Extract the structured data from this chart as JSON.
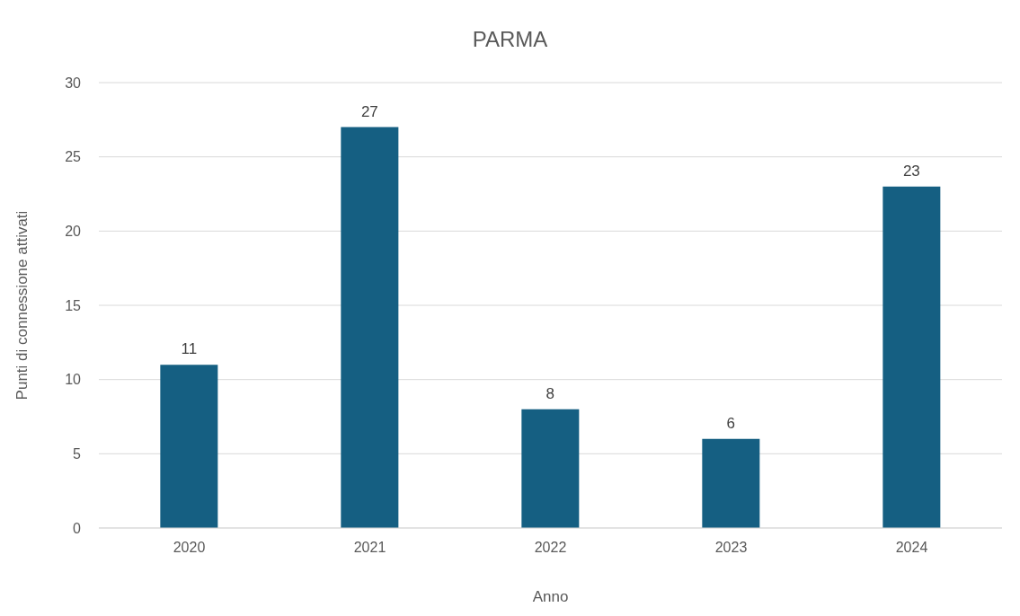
{
  "chart_data": {
    "type": "bar",
    "title": "PARMA",
    "xlabel": "Anno",
    "ylabel": "Punti di connessione attivati",
    "categories": [
      "2020",
      "2021",
      "2022",
      "2023",
      "2024"
    ],
    "values": [
      11,
      27,
      8,
      6,
      23
    ],
    "color": "#155f82",
    "ylim": [
      0,
      30
    ],
    "yticks": [
      0,
      5,
      10,
      15,
      20,
      25,
      30
    ],
    "grid": "y",
    "data_labels": true
  }
}
